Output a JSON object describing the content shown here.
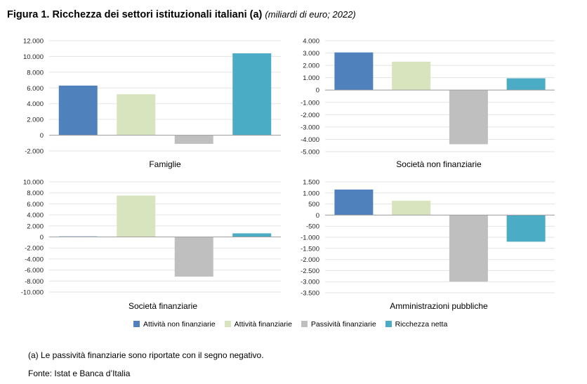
{
  "title": {
    "main": "Figura 1. Ricchezza dei settori istituzionali italiani (a)",
    "sub": "(miliardi di euro; 2022)"
  },
  "chart_data": [
    {
      "type": "bar",
      "xlabel": "Famiglie",
      "categories": [
        "Attività non finanziarie",
        "Attività finanziarie",
        "Passività finanziarie",
        "Ricchezza netta"
      ],
      "values": [
        6300,
        5200,
        -1100,
        10400
      ],
      "ylim": [
        -2000,
        12000
      ],
      "ticks": [
        12000,
        10000,
        8000,
        6000,
        4000,
        2000,
        0,
        -2000
      ],
      "tick_labels": [
        "12.000",
        "10.000",
        "8.000",
        "6.000",
        "4.000",
        "2.000",
        "0",
        "-2.000"
      ]
    },
    {
      "type": "bar",
      "xlabel": "Società non finanziarie",
      "categories": [
        "Attività non finanziarie",
        "Attività finanziarie",
        "Passività finanziarie",
        "Ricchezza netta"
      ],
      "values": [
        3050,
        2300,
        -4400,
        950
      ],
      "ylim": [
        -5000,
        4000
      ],
      "ticks": [
        4000,
        3000,
        2000,
        1000,
        0,
        -1000,
        -2000,
        -3000,
        -4000,
        -5000
      ],
      "tick_labels": [
        "4.000",
        "3.000",
        "2.000",
        "1.000",
        "0",
        "-1.000",
        "-2.000",
        "-3.000",
        "-4.000",
        "-5.000"
      ]
    },
    {
      "type": "bar",
      "xlabel": "Società finanziarie",
      "categories": [
        "Attività non finanziarie",
        "Attività finanziarie",
        "Passività finanziarie",
        "Ricchezza netta"
      ],
      "values": [
        100,
        7500,
        -7200,
        650
      ],
      "ylim": [
        -10000,
        10000
      ],
      "ticks": [
        10000,
        8000,
        6000,
        4000,
        2000,
        0,
        -2000,
        -4000,
        -6000,
        -8000,
        -10000
      ],
      "tick_labels": [
        "10.000",
        "8.000",
        "6.000",
        "4.000",
        "2.000",
        "0",
        "-2.000",
        "-4.000",
        "-6.000",
        "-8.000",
        "-10.000"
      ]
    },
    {
      "type": "bar",
      "xlabel": "Amministrazioni pubbliche",
      "categories": [
        "Attività non finanziarie",
        "Attività finanziarie",
        "Passività finanziarie",
        "Ricchezza netta"
      ],
      "values": [
        1150,
        650,
        -3000,
        -1200
      ],
      "ylim": [
        -3500,
        1500
      ],
      "ticks": [
        1500,
        1000,
        500,
        0,
        -500,
        -1000,
        -1500,
        -2000,
        -2500,
        -3000,
        -3500
      ],
      "tick_labels": [
        "1.500",
        "1.000",
        "500",
        "0",
        "-500",
        "-1.000",
        "-1.500",
        "-2.000",
        "-2.500",
        "-3.000",
        "-3.500"
      ]
    }
  ],
  "legend": [
    {
      "label": "Attività non finanziarie",
      "color": "#4f81bd"
    },
    {
      "label": "Attività finanziarie",
      "color": "#d7e4bd"
    },
    {
      "label": "Passività finanziarie",
      "color": "#bfbfbf"
    },
    {
      "label": "Ricchezza netta",
      "color": "#4bacc6"
    }
  ],
  "note": "(a) Le passività finanziarie sono riportate con il segno negativo.",
  "source": "Fonte: Istat e Banca d’Italia"
}
